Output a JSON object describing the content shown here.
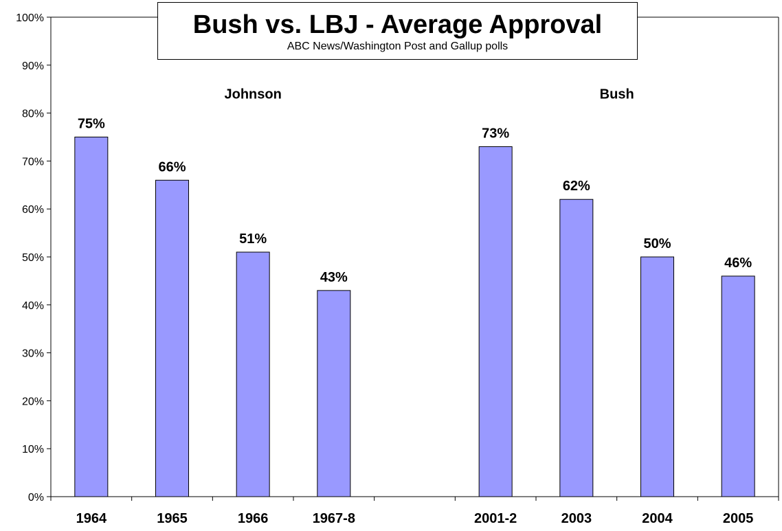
{
  "chart_data": {
    "type": "bar",
    "title": "Bush vs. LBJ - Average Approval",
    "subtitle": "ABC News/Washington Post and Gallup polls",
    "xlabel": "",
    "ylabel": "",
    "ylim": [
      0,
      100
    ],
    "yticks": [
      "0%",
      "10%",
      "20%",
      "30%",
      "40%",
      "50%",
      "60%",
      "70%",
      "80%",
      "90%",
      "100%"
    ],
    "grid": false,
    "bar_color": "#9999ff",
    "categories": [
      "1964",
      "1965",
      "1966",
      "1967-8",
      "",
      "2001-2",
      "2003",
      "2004",
      "2005"
    ],
    "values": [
      75,
      66,
      51,
      43,
      null,
      73,
      62,
      50,
      46
    ],
    "data_labels": [
      "75%",
      "66%",
      "51%",
      "43%",
      "",
      "73%",
      "62%",
      "50%",
      "46%"
    ],
    "annotations": [
      {
        "text": "Johnson",
        "category_index": 2,
        "y": 83
      },
      {
        "text": "Bush",
        "category_index": 6.5,
        "y": 83
      }
    ]
  }
}
